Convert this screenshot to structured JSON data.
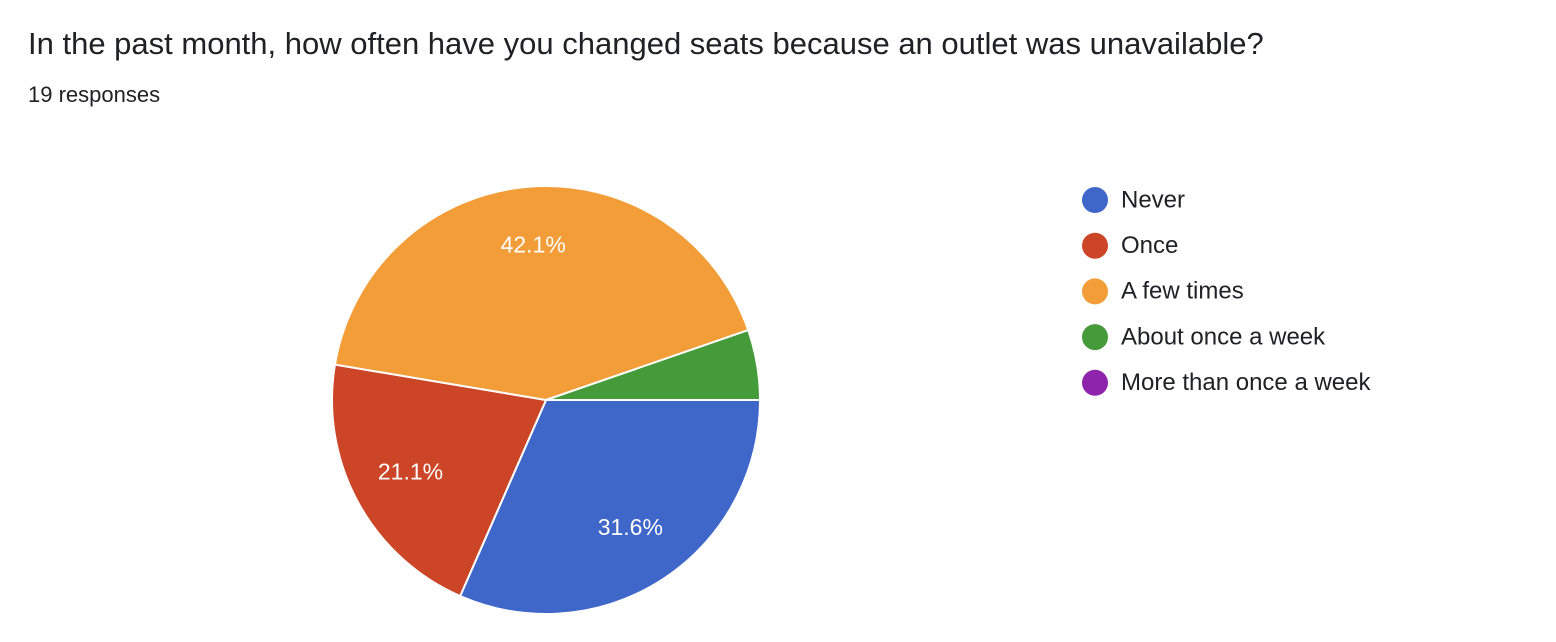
{
  "chart_data": {
    "type": "pie",
    "title": "In the past month, how often have you changed seats because an outlet was unavailable?",
    "subtitle": "19 responses",
    "categories": [
      "Never",
      "Once",
      "A few times",
      "About once a week",
      "More than once a week"
    ],
    "values": [
      31.6,
      21.1,
      42.1,
      5.3,
      0
    ],
    "value_labels": [
      "31.6%",
      "21.1%",
      "42.1%",
      null,
      null
    ],
    "colors": [
      "#3f67c9",
      "#cc4527",
      "#f29d38",
      "#459a3a",
      "#8e24aa"
    ],
    "legend": "right"
  }
}
